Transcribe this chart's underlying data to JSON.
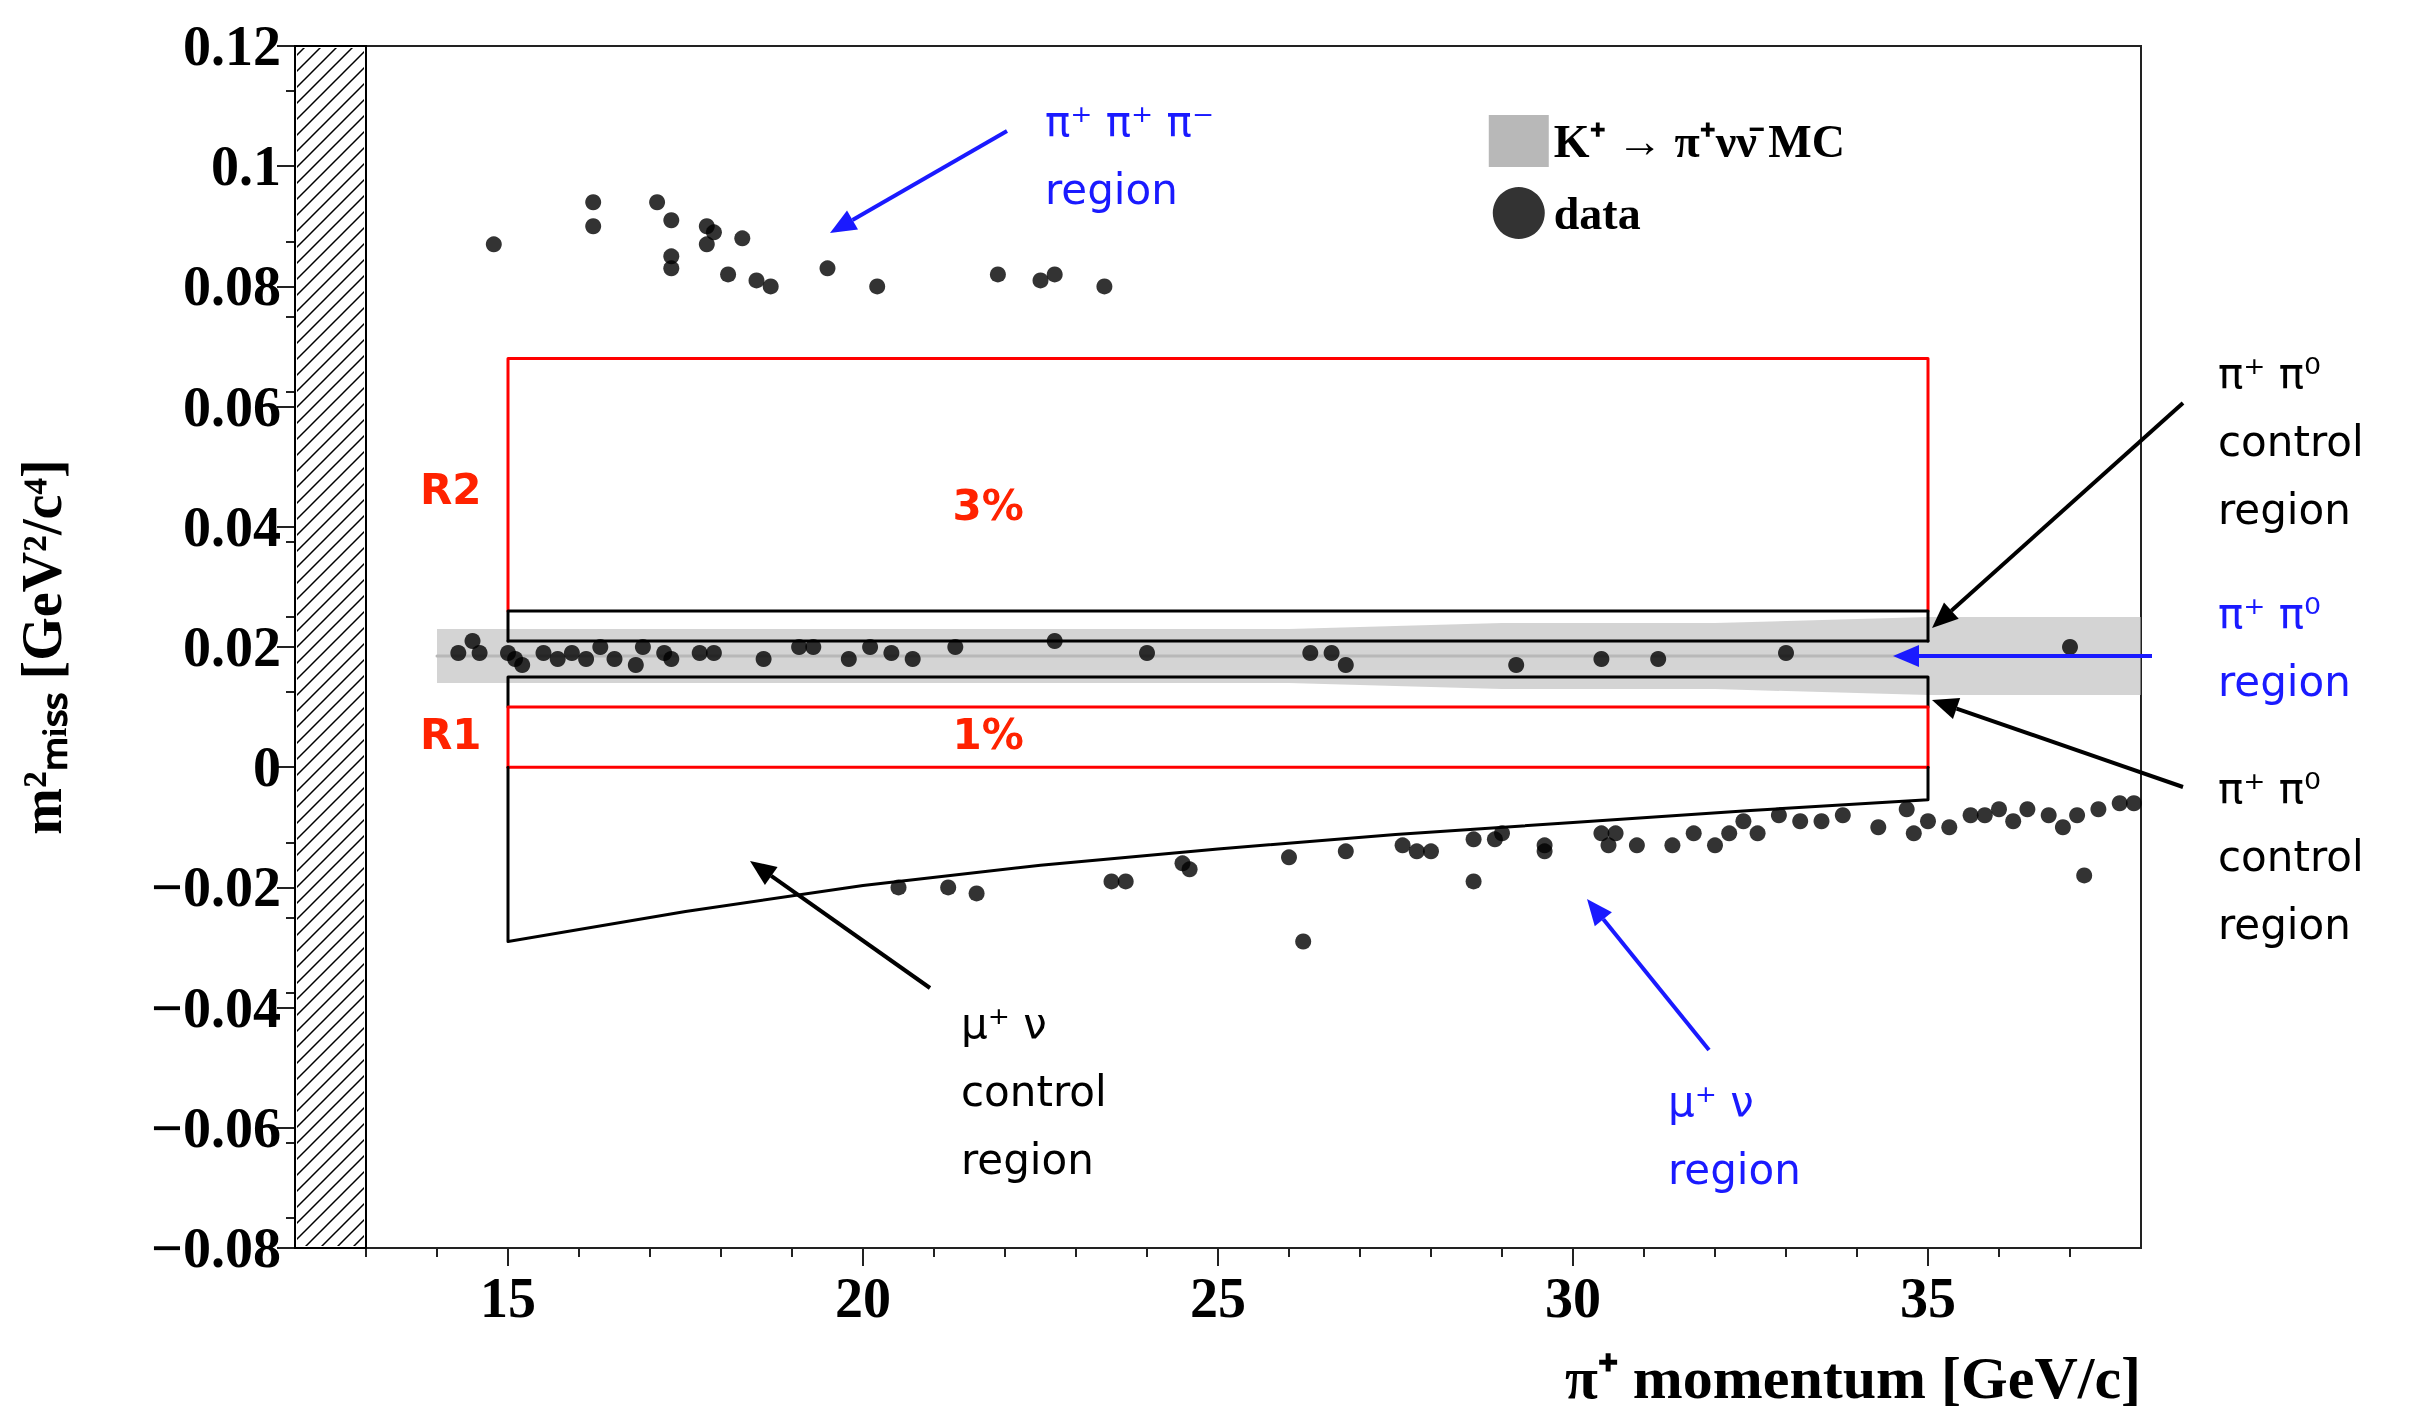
{
  "chart_data": {
    "type": "scatter",
    "xlabel": "π⁺ momentum [GeV/c]",
    "ylabel": "m²ₘᵢₛₛ [GeV²/c⁴]",
    "xlim": [
      12,
      38
    ],
    "xticks": [
      15,
      20,
      25,
      30,
      35
    ],
    "ylim": [
      -0.08,
      0.12
    ],
    "yticks": [
      {
        "value": -0.08,
        "label": "−0.08"
      },
      {
        "value": -0.06,
        "label": "−0.06"
      },
      {
        "value": -0.04,
        "label": "−0.04"
      },
      {
        "value": -0.02,
        "label": "−0.02"
      },
      0,
      0.02,
      0.04,
      0.06,
      0.08,
      0.1,
      0.12
    ],
    "grid": false,
    "legend": "top right",
    "bands": [
      {
        "axis": "x",
        "from": 12,
        "to": 13,
        "color": "#ffffff"
      }
    ],
    "series": [
      {
        "name": "K⁺ → π⁺νν̄ MC",
        "type": "line",
        "color": "#b8b8b8",
        "x": [
          14,
          17,
          20,
          23,
          26,
          29,
          32,
          35,
          38
        ],
        "values": [
          0.0185,
          0.0185,
          0.0185,
          0.0185,
          0.0185,
          0.0185,
          0.0185,
          0.0185,
          0.0185
        ],
        "lower": [
          0.014,
          0.014,
          0.014,
          0.014,
          0.014,
          0.013,
          0.013,
          0.012,
          0.012
        ],
        "upper": [
          0.023,
          0.023,
          0.023,
          0.023,
          0.023,
          0.024,
          0.024,
          0.025,
          0.025
        ]
      },
      {
        "name": "data",
        "color": "#000000",
        "marker": "circle",
        "x": [
          14.8,
          16.2,
          16.2,
          17.1,
          17.3,
          17.3,
          17.3,
          17.8,
          17.9,
          18.3,
          17.8,
          18.1,
          18.5,
          18.7,
          19.5,
          20.2,
          21.9,
          22.5,
          22.7,
          23.4,
          14.3,
          14.5,
          14.6,
          15.0,
          15.1,
          15.2,
          15.5,
          15.7,
          15.9,
          16.1,
          16.3,
          16.5,
          16.8,
          16.9,
          17.2,
          17.3,
          17.7,
          17.9,
          18.6,
          19.1,
          19.3,
          19.8,
          20.1,
          20.4,
          20.7,
          21.3,
          22.7,
          24.0,
          26.3,
          26.6,
          26.8,
          29.2,
          30.4,
          31.2,
          33.0,
          37.0,
          20.5,
          21.2,
          21.6,
          23.5,
          23.7,
          24.5,
          24.6,
          26.0,
          26.2,
          26.8,
          27.6,
          27.8,
          28.0,
          28.6,
          28.6,
          28.9,
          29.0,
          29.6,
          29.6,
          30.4,
          30.5,
          30.6,
          30.9,
          31.4,
          31.7,
          32.0,
          32.2,
          32.4,
          32.6,
          32.9,
          33.2,
          33.5,
          33.8,
          34.3,
          34.7,
          34.8,
          35.0,
          35.3,
          35.6,
          35.8,
          36.0,
          36.2,
          36.4,
          36.7,
          36.9,
          37.1,
          37.2,
          37.4,
          37.7,
          37.9
        ],
        "values": [
          0.087,
          0.094,
          0.09,
          0.094,
          0.091,
          0.085,
          0.083,
          0.09,
          0.089,
          0.088,
          0.087,
          0.082,
          0.081,
          0.08,
          0.083,
          0.08,
          0.082,
          0.081,
          0.082,
          0.08,
          0.019,
          0.021,
          0.019,
          0.019,
          0.018,
          0.017,
          0.019,
          0.018,
          0.019,
          0.018,
          0.02,
          0.018,
          0.017,
          0.02,
          0.019,
          0.018,
          0.019,
          0.019,
          0.018,
          0.02,
          0.02,
          0.018,
          0.02,
          0.019,
          0.018,
          0.02,
          0.021,
          0.019,
          0.019,
          0.019,
          0.017,
          0.017,
          0.018,
          0.018,
          0.019,
          0.02,
          -0.02,
          -0.02,
          -0.021,
          -0.019,
          -0.019,
          -0.016,
          -0.017,
          -0.015,
          -0.029,
          -0.014,
          -0.013,
          -0.014,
          -0.014,
          -0.012,
          -0.019,
          -0.012,
          -0.011,
          -0.013,
          -0.014,
          -0.011,
          -0.013,
          -0.011,
          -0.013,
          -0.013,
          -0.011,
          -0.013,
          -0.011,
          -0.009,
          -0.011,
          -0.008,
          -0.009,
          -0.009,
          -0.008,
          -0.01,
          -0.007,
          -0.011,
          -0.009,
          -0.01,
          -0.008,
          -0.008,
          -0.007,
          -0.009,
          -0.007,
          -0.008,
          -0.01,
          -0.008,
          -0.018,
          -0.007,
          -0.006,
          -0.006
        ]
      },
      {
        "type": "line",
        "color": "#ff0000",
        "x": [
          15,
          15,
          35,
          35
        ],
        "values": [
          0.026,
          0.068,
          0.068,
          0.026
        ]
      },
      {
        "type": "line",
        "color": "#000000",
        "x": [
          15,
          15,
          35,
          35
        ],
        "values": [
          0.021,
          0.026,
          0.026,
          0.021
        ]
      },
      {
        "type": "line",
        "color": "#000000",
        "x": [
          15,
          35
        ],
        "values": [
          0.021,
          0.021
        ]
      },
      {
        "type": "line",
        "color": "#000000",
        "x": [
          15,
          15,
          35,
          35
        ],
        "values": [
          0.01,
          0.015,
          0.015,
          0.01
        ]
      },
      {
        "type": "line",
        "color": "#ff0000",
        "x": [
          15,
          15,
          35,
          35
        ],
        "values": [
          0,
          0.01,
          0.01,
          0
        ]
      },
      {
        "type": "line",
        "color": "#ff0000",
        "x": [
          15,
          35
        ],
        "values": [
          0,
          0
        ]
      },
      {
        "type": "line",
        "color": "#000000",
        "x": [
          15,
          15,
          17.5,
          20,
          22.5,
          25,
          27.5,
          30,
          32.5,
          35,
          35
        ],
        "values": [
          0,
          -0.029,
          -0.024,
          -0.0197,
          -0.0163,
          -0.0136,
          -0.0112,
          -0.0092,
          -0.0072,
          -0.0054,
          0
        ]
      }
    ],
    "annotations": [
      "π⁺ π⁺ π⁻\nregion",
      "π⁺ π⁰\ncontrol\nregion",
      "π⁺ π⁰\nregion",
      "π⁺ π⁰\ncontrol\nregion",
      "μ⁺ ν\ncontrol\nregion",
      "μ⁺ ν\nregion",
      "R2",
      "3%",
      "R1",
      "1%"
    ]
  }
}
